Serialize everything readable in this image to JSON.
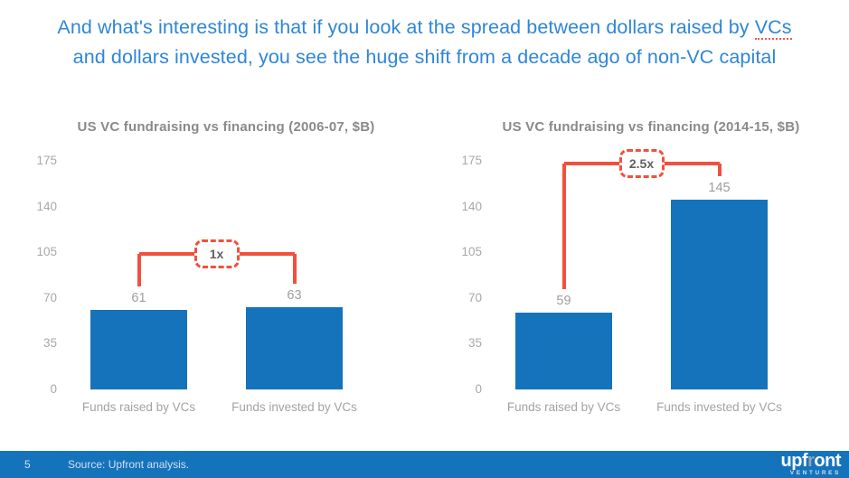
{
  "title": {
    "line1_before": "And what's interesting is that if you look at the spread between dollars raised by ",
    "line1_word": "VCs",
    "line2": "and dollars invested, you see the huge shift from a decade ago of non-VC capital"
  },
  "chart_data": [
    {
      "type": "bar",
      "title": "US VC fundraising vs financing (2006-07, $B)",
      "categories": [
        "Funds raised by VCs",
        "Funds invested by VCs"
      ],
      "values": [
        61,
        63
      ],
      "ylim": [
        0,
        175
      ],
      "yticks": [
        0,
        35,
        70,
        105,
        140,
        175
      ],
      "grid": false,
      "legend": "none",
      "bar_color": "#1573bc",
      "annotation": {
        "label": "1x",
        "level": 104,
        "style": "red-dashed-box-bracket"
      }
    },
    {
      "type": "bar",
      "title": "US VC fundraising vs financing (2014-15, $B)",
      "categories": [
        "Funds raised by VCs",
        "Funds invested by VCs"
      ],
      "values": [
        59,
        145
      ],
      "ylim": [
        0,
        175
      ],
      "yticks": [
        0,
        35,
        70,
        105,
        140,
        175
      ],
      "grid": false,
      "legend": "none",
      "bar_color": "#1573bc",
      "annotation": {
        "label": "2.5x",
        "level": 173,
        "style": "red-dashed-box-bracket"
      }
    }
  ],
  "footer": {
    "page_number": "5",
    "source": "Source: Upfront analysis.",
    "logo": {
      "part1": "upf",
      "part2": "r",
      "part3": "ont",
      "subtext": "VENTURES"
    }
  },
  "colors": {
    "title_blue": "#2f86d8",
    "bar_blue": "#1573bc",
    "accent_red": "#f2503e",
    "footer_blue": "#1573bc",
    "label_gray": "#a6a6a6",
    "chart_title_gray": "#8a8a8a"
  }
}
